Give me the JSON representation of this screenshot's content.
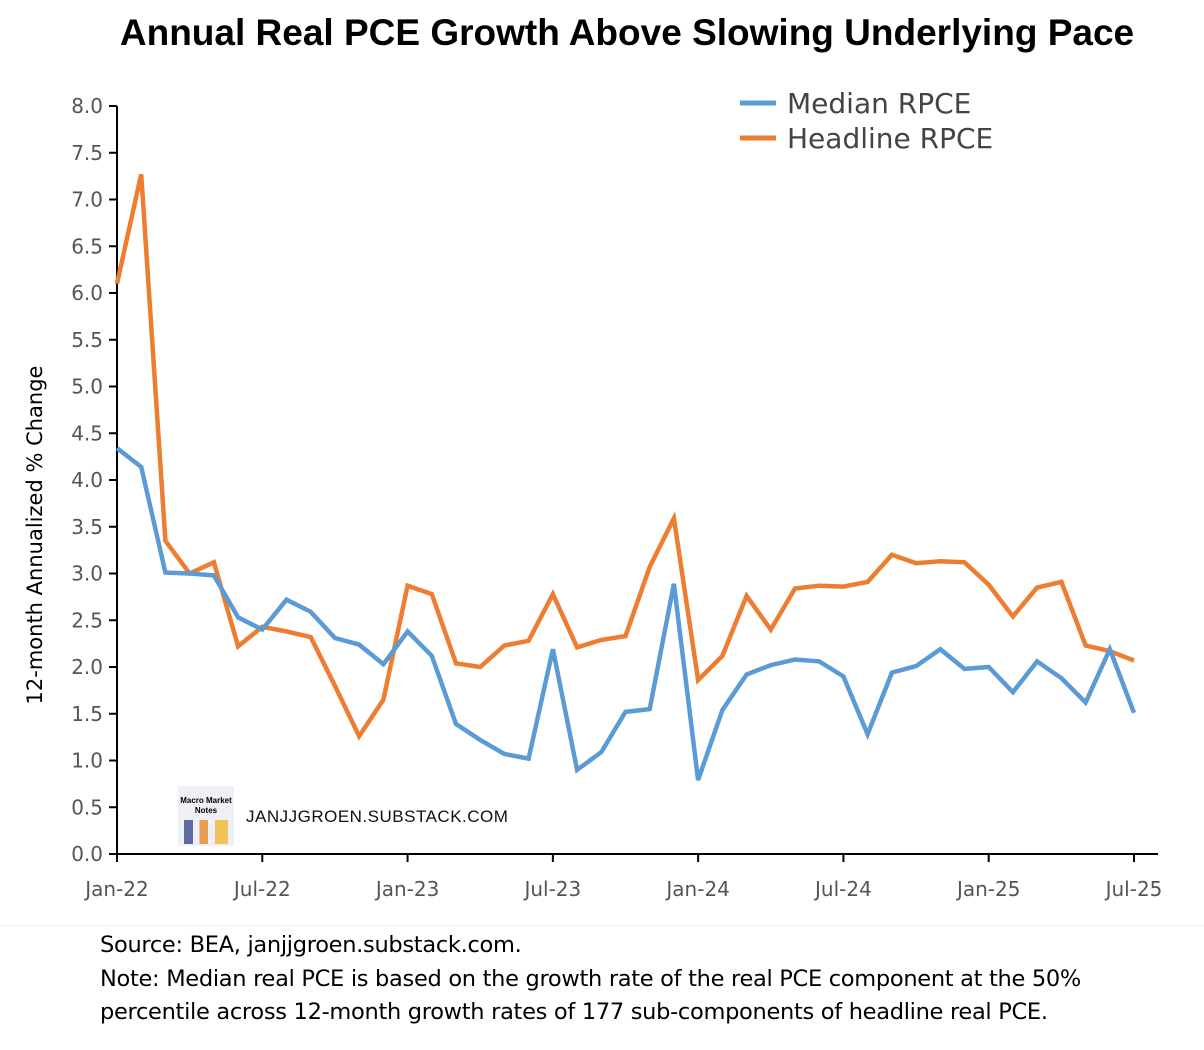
{
  "chart_data": {
    "type": "line",
    "title": "Annual Real PCE Growth Above Slowing Underlying Pace",
    "xlabel": "",
    "ylabel": "12-month Annualized % Change",
    "ylim": [
      0,
      8
    ],
    "yticks": [
      "0.0",
      "0.5",
      "1.0",
      "1.5",
      "2.0",
      "2.5",
      "3.0",
      "3.5",
      "4.0",
      "4.5",
      "5.0",
      "5.5",
      "6.0",
      "6.5",
      "7.0",
      "7.5",
      "8.0"
    ],
    "xtick_labels": [
      "Jan-22",
      "Jul-22",
      "Jan-23",
      "Jul-23",
      "Jan-24",
      "Jul-24",
      "Jan-25",
      "Jul-25"
    ],
    "x_start": "Jan-22",
    "x_end": "Jul-25",
    "frequency": "monthly",
    "grid": false,
    "legend_position": "top-right",
    "series": [
      {
        "name": "Median RPCE",
        "color": "#5b9bd5",
        "values": [
          4.34,
          4.14,
          3.01,
          3.0,
          2.98,
          2.53,
          2.4,
          2.72,
          2.59,
          2.31,
          2.24,
          2.03,
          2.38,
          2.12,
          1.39,
          1.22,
          1.07,
          1.02,
          2.19,
          0.9,
          1.09,
          1.52,
          1.55,
          2.89,
          0.79,
          1.54,
          1.92,
          2.02,
          2.08,
          2.06,
          1.9,
          1.28,
          1.94,
          2.01,
          2.19,
          1.98,
          2.0,
          1.73,
          2.06,
          1.88,
          1.62,
          2.19,
          1.51
        ]
      },
      {
        "name": "Headline RPCE",
        "color": "#ed7d31",
        "values": [
          6.1,
          7.27,
          3.35,
          3.0,
          3.12,
          2.22,
          2.43,
          2.38,
          2.32,
          1.8,
          1.26,
          1.65,
          2.87,
          2.78,
          2.04,
          2.0,
          2.23,
          2.28,
          2.78,
          2.21,
          2.29,
          2.33,
          3.07,
          3.59,
          1.86,
          2.12,
          2.76,
          2.4,
          2.84,
          2.87,
          2.86,
          2.91,
          3.2,
          3.11,
          3.13,
          3.12,
          2.88,
          2.54,
          2.85,
          2.91,
          2.23,
          2.17,
          2.07
        ]
      }
    ]
  },
  "watermark": "JANJJGROEN.SUBSTACK.COM",
  "logo_text": "Macro Market Notes",
  "notes": {
    "source": "Source: BEA, janjjgroen.substack.com.",
    "note_line1": "Note: Median real PCE is based on the growth rate of the real PCE component at the 50%",
    "note_line2": "percentile across 12-month growth rates of 177 sub-components of headline real PCE."
  }
}
